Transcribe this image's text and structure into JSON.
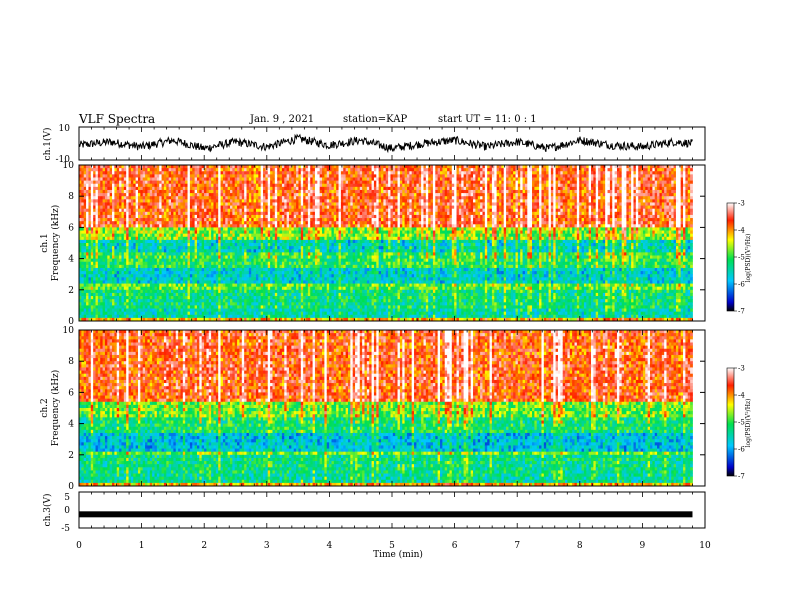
{
  "header": {
    "title": "VLF Spectra",
    "date": "Jan. 9 , 2021",
    "station": "station=KAP",
    "start_ut": "start UT =  11: 0  : 1"
  },
  "chart_data": [
    {
      "type": "line",
      "panel": "ch1-waveform",
      "ylabel": "ch.1(V)",
      "ylim": [
        -10,
        10
      ],
      "yticks": [
        "10",
        "-10"
      ],
      "xlim": [
        0,
        10
      ],
      "x": [
        0,
        0.5,
        1,
        1.5,
        2,
        2.5,
        3,
        3.5,
        4,
        4.5,
        5,
        5.5,
        6,
        6.5,
        7,
        7.5,
        8,
        8.5,
        9,
        9.5,
        9.8
      ],
      "values": [
        -1,
        1,
        -2,
        2,
        -3,
        1,
        -2,
        3,
        -1,
        2,
        -3,
        0,
        2,
        -2,
        1,
        -3,
        2,
        -1,
        -2,
        1,
        0
      ],
      "color": "#000000"
    },
    {
      "type": "heatmap",
      "panel": "ch1-spectrogram",
      "ylabel": "ch.1",
      "ylabel2": "Frequency (kHz)",
      "ylim": [
        0,
        10
      ],
      "yticks": [
        "0",
        "2",
        "4",
        "6",
        "8",
        "10"
      ],
      "xlim": [
        0,
        10
      ],
      "data_extent_min": 9.8,
      "colorbar": {
        "range": [
          -7,
          -3
        ],
        "ticks": [
          "-3",
          "-4",
          "-5",
          "-6",
          "-7"
        ],
        "label": "log(PSD)(V²/Hz)"
      },
      "band_levels": [
        {
          "from": 0.0,
          "to": 0.3,
          "level": -4.2
        },
        {
          "from": 0.3,
          "to": 0.7,
          "level": -5.5
        },
        {
          "from": 0.7,
          "to": 2.0,
          "level": -5.3
        },
        {
          "from": 2.0,
          "to": 2.5,
          "level": -4.9
        },
        {
          "from": 2.5,
          "to": 3.5,
          "level": -5.7
        },
        {
          "from": 3.5,
          "to": 4.5,
          "level": -5.1
        },
        {
          "from": 4.5,
          "to": 5.2,
          "level": -5.6
        },
        {
          "from": 5.2,
          "to": 6.0,
          "level": -4.7
        },
        {
          "from": 6.0,
          "to": 10.0,
          "level": -3.7
        }
      ]
    },
    {
      "type": "heatmap",
      "panel": "ch2-spectrogram",
      "ylabel": "ch.2",
      "ylabel2": "Frequency (kHz)",
      "ylim": [
        0,
        10
      ],
      "yticks": [
        "0",
        "2",
        "4",
        "6",
        "8",
        "10"
      ],
      "xlim": [
        0,
        10
      ],
      "data_extent_min": 9.8,
      "colorbar": {
        "range": [
          -7,
          -3
        ],
        "ticks": [
          "-3",
          "-4",
          "-5",
          "-6",
          "-7"
        ],
        "label": "log(PSD)(V²/Hz)"
      },
      "band_levels": [
        {
          "from": 0.0,
          "to": 0.3,
          "level": -4.2
        },
        {
          "from": 0.3,
          "to": 0.7,
          "level": -5.4
        },
        {
          "from": 0.7,
          "to": 2.0,
          "level": -5.3
        },
        {
          "from": 2.0,
          "to": 2.3,
          "level": -4.8
        },
        {
          "from": 2.3,
          "to": 3.5,
          "level": -5.8
        },
        {
          "from": 3.5,
          "to": 4.5,
          "level": -5.2
        },
        {
          "from": 4.5,
          "to": 5.5,
          "level": -4.8
        },
        {
          "from": 5.5,
          "to": 10.0,
          "level": -3.7
        }
      ]
    },
    {
      "type": "line",
      "panel": "ch3-waveform",
      "ylabel": "ch.3(V)",
      "ylim": [
        -5,
        5
      ],
      "yticks": [
        "5",
        "0",
        "-5"
      ],
      "xlim": [
        0,
        10
      ],
      "x": [
        0,
        9.8
      ],
      "values": [
        -1.2,
        -1.2
      ],
      "color": "#000000"
    }
  ],
  "xaxis": {
    "label": "Time (min)",
    "ticks": [
      "0",
      "1",
      "2",
      "3",
      "4",
      "5",
      "6",
      "7",
      "8",
      "9",
      "10"
    ]
  }
}
